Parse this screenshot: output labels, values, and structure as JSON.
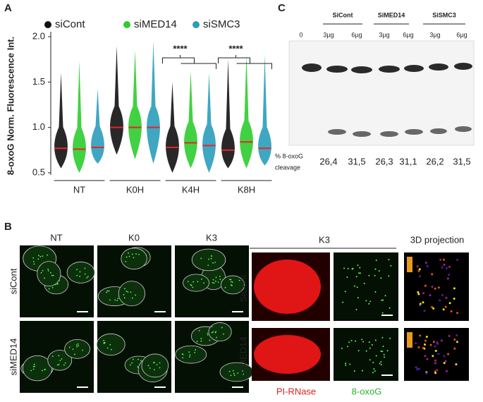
{
  "panel_labels": [
    "A",
    "B",
    "C"
  ],
  "chart_data": {
    "type": "violin",
    "y_label": "8-oxoG Norm. Fluorescence Int.",
    "categories": [
      "NT",
      "K0H",
      "K4H",
      "K8H"
    ],
    "series": [
      {
        "name": "siCont",
        "color": "#111111",
        "values": [
          0.77,
          1.0,
          0.78,
          0.75
        ],
        "min": [
          0.55,
          0.7,
          0.5,
          0.55
        ],
        "max": [
          1.6,
          1.9,
          1.5,
          1.75
        ]
      },
      {
        "name": "siMED14",
        "color": "#2ecc2e",
        "values": [
          0.76,
          1.0,
          0.83,
          0.84
        ],
        "min": [
          0.5,
          0.65,
          0.55,
          0.55
        ],
        "max": [
          1.73,
          1.85,
          1.62,
          1.8
        ]
      },
      {
        "name": "siSMC3",
        "color": "#2a9dbb",
        "values": [
          0.78,
          1.0,
          0.8,
          0.77
        ],
        "min": [
          0.6,
          0.6,
          0.5,
          0.58
        ],
        "max": [
          1.43,
          1.95,
          1.6,
          1.8
        ]
      }
    ],
    "ylim": [
      0.5,
      2.0
    ],
    "yticks": [
      0.5,
      {
        "value": 1.0,
        "label": "1.0"
      },
      1.5,
      {
        "value": 2.0,
        "label": "2.0"
      }
    ],
    "significance": [
      "****",
      "****"
    ]
  },
  "panel_b": {
    "columns": [
      "NT",
      "K0",
      "K3"
    ],
    "rows": [
      "siCont",
      "siMED14"
    ],
    "zoom_header": "K3",
    "projection_header": "3D projection",
    "zoom_rows": [
      "SiCont",
      "SiMED14"
    ],
    "channels": [
      "PI-RNase",
      "8-oxoG"
    ]
  },
  "panel_c": {
    "groups": [
      "SiCont",
      "SiMED14",
      "SiSMC3"
    ],
    "lanes": [
      "0",
      "3µg",
      "6µg",
      "3µg",
      "6µg",
      "3µg",
      "6µg"
    ],
    "row_label": [
      "% 8-oxoG",
      "cleavage"
    ],
    "cleavage": [
      "26,4",
      "31,5",
      "26,3",
      "31,1",
      "26,2",
      "31,5"
    ]
  }
}
